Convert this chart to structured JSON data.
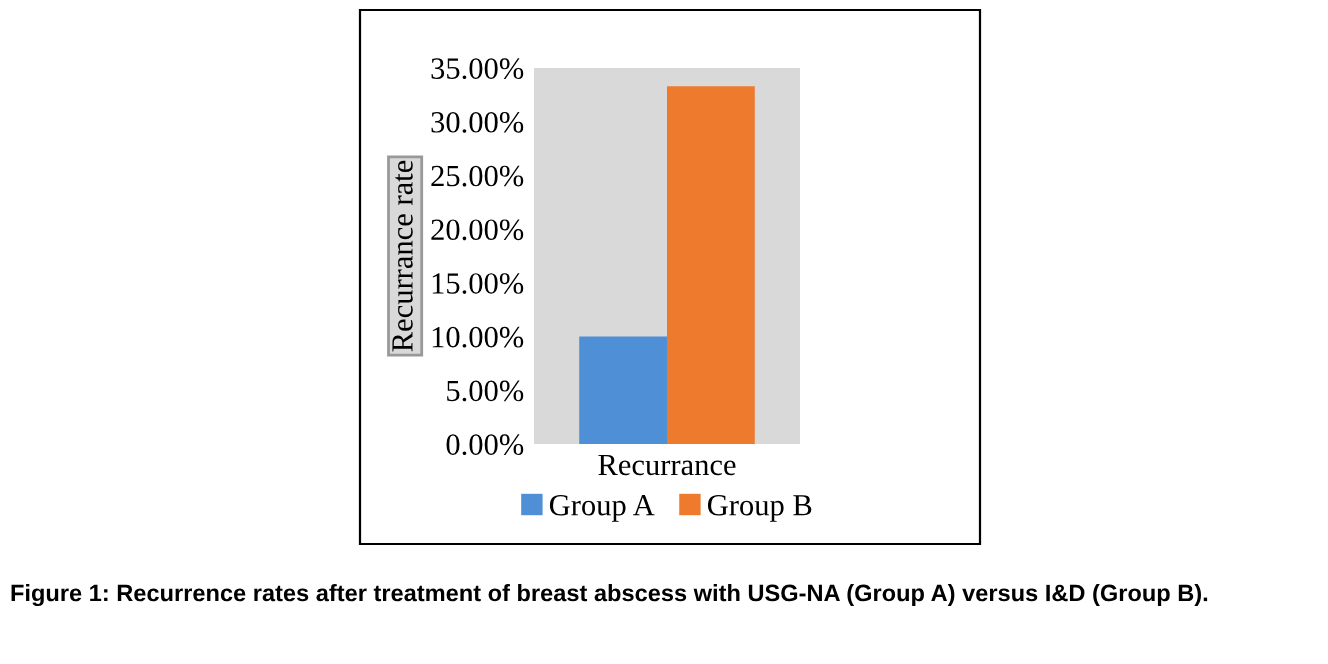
{
  "chart_data": {
    "type": "bar",
    "categories": [
      "Recurrance"
    ],
    "ylabel": "Recurrance rate",
    "series": [
      {
        "name": "Group A",
        "color": "#4f8fd6",
        "values": [
          10
        ]
      },
      {
        "name": "Group B",
        "color": "#ee7a2e",
        "values": [
          33.3
        ]
      }
    ],
    "ylim": [
      0,
      35
    ],
    "yticks": [
      {
        "value": 0,
        "label": "0.00%"
      },
      {
        "value": 5,
        "label": "5.00%"
      },
      {
        "value": 10,
        "label": "10.00%"
      },
      {
        "value": 15,
        "label": "15.00%"
      },
      {
        "value": 20,
        "label": "20.00%"
      },
      {
        "value": 25,
        "label": "25.00%"
      },
      {
        "value": 30,
        "label": "30.00%"
      },
      {
        "value": 35,
        "label": "35.00%"
      }
    ],
    "grid": false,
    "legend": "bottom",
    "annotations": [
      "Figure 1: Recurrence rates after treatment of breast abscess with USG-NA (Group A) versus I&D (Group B)."
    ]
  }
}
